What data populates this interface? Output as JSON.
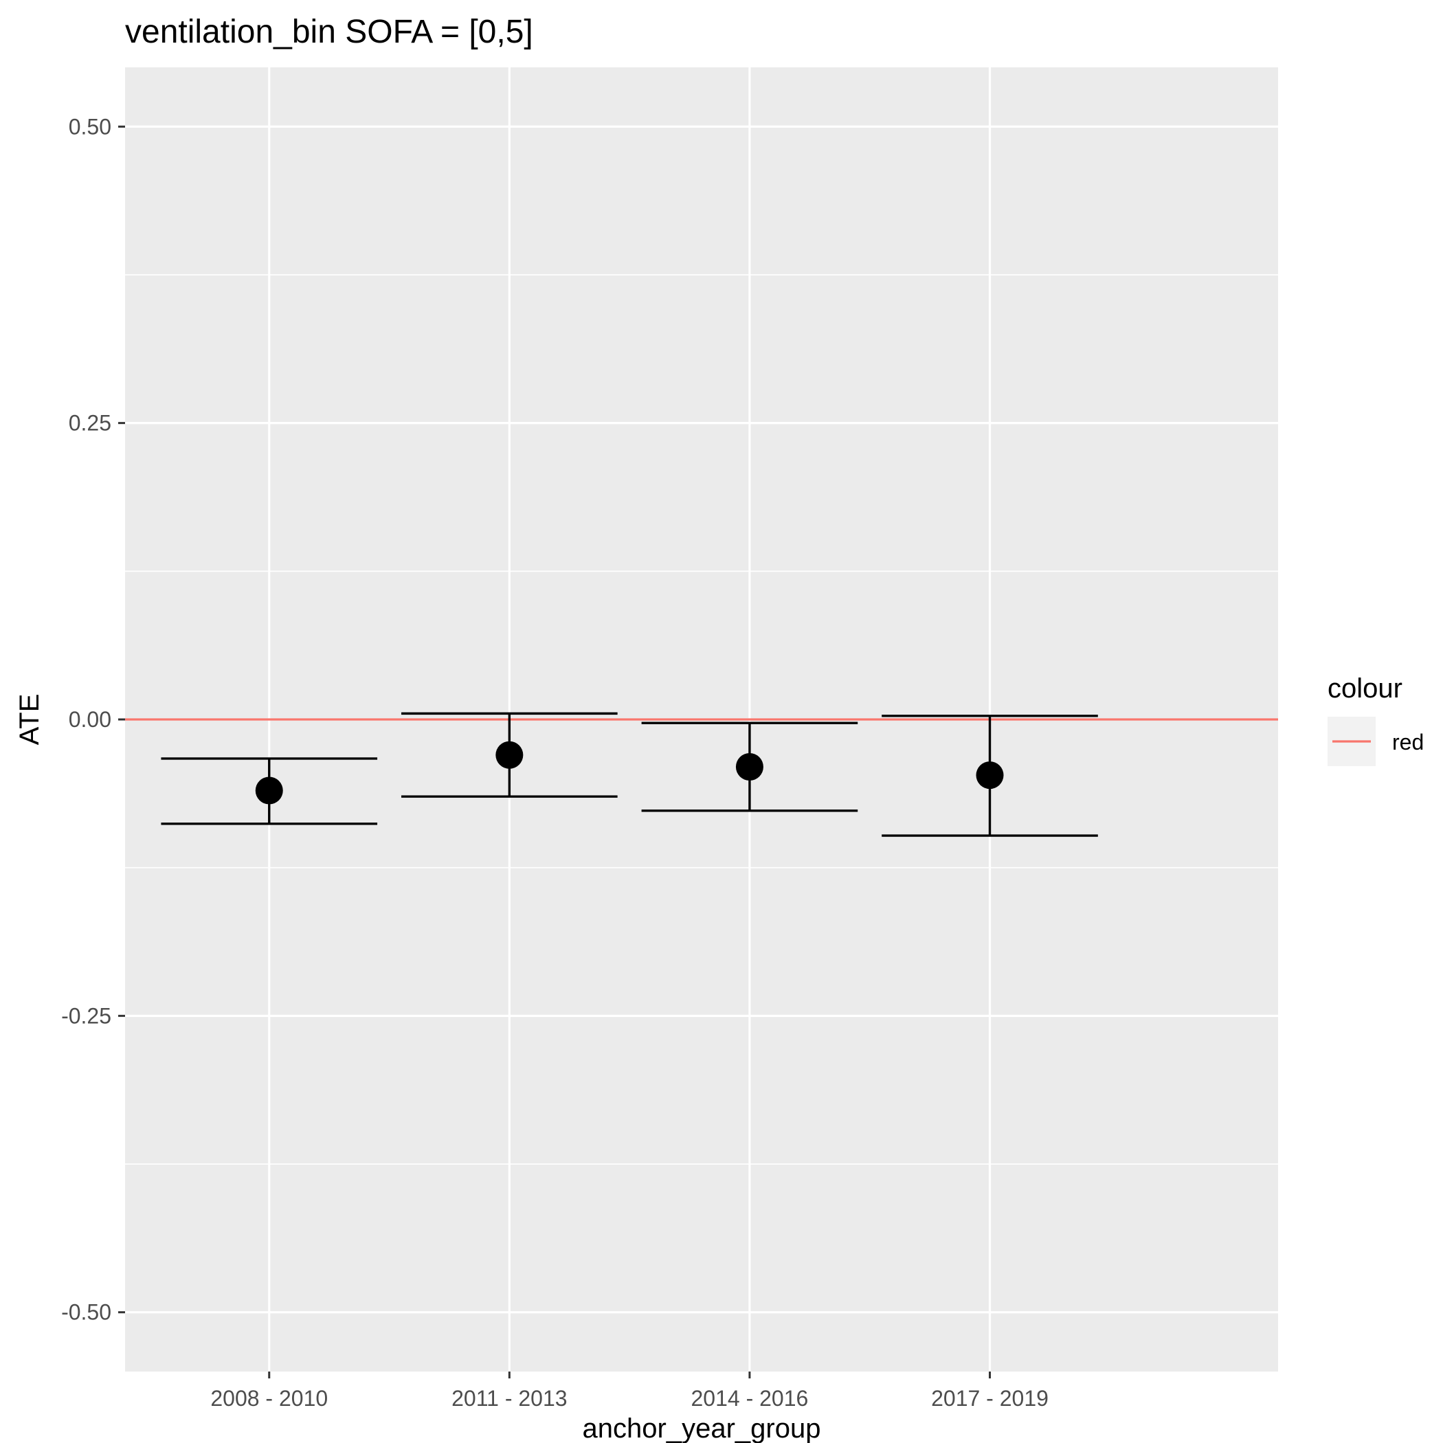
{
  "chart_data": {
    "type": "scatter",
    "title": "ventilation_bin SOFA = [0,5]",
    "xlabel": "anchor_year_group",
    "ylabel": "ATE",
    "categories": [
      "2008 - 2010",
      "2011 - 2013",
      "2014 - 2016",
      "2017 - 2019"
    ],
    "series": [
      {
        "values": [
          -0.06,
          -0.03,
          -0.04,
          -0.047
        ],
        "error_low": [
          -0.088,
          -0.065,
          -0.077,
          -0.098
        ],
        "error_high": [
          -0.033,
          0.005,
          -0.003,
          0.003
        ]
      }
    ],
    "ylim": [
      -0.55,
      0.55
    ],
    "y_ticks": [
      "0.50",
      "0.25",
      "0.00",
      "-0.25",
      "-0.50"
    ],
    "y_tick_values": [
      0.5,
      0.25,
      0.0,
      -0.25,
      -0.5
    ],
    "y_minor_values": [
      0.375,
      0.125,
      -0.125,
      -0.375
    ],
    "reference_line": {
      "y": 0,
      "color": "#F8766D"
    },
    "legend": {
      "title": "colour",
      "entries": [
        {
          "label": "red",
          "color": "#F8766D"
        }
      ],
      "position": "right"
    },
    "colors": {
      "panel": "#EBEBEB",
      "grid": "#FFFFFF",
      "point": "#000000",
      "errorbar": "#000000"
    },
    "grid": true
  }
}
